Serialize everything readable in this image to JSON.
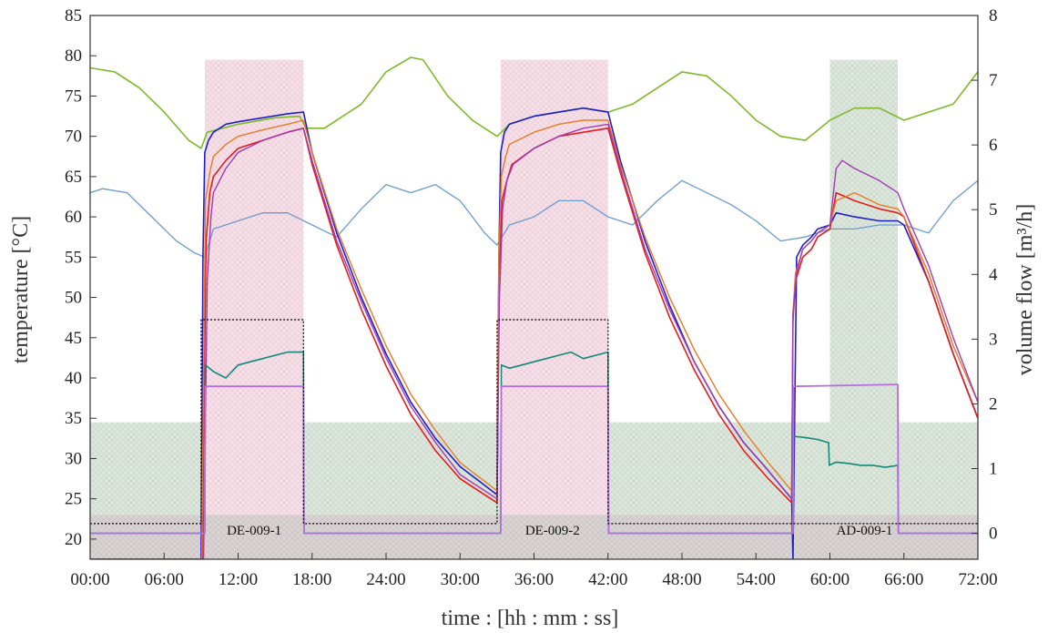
{
  "chart_data": {
    "type": "line",
    "xlabel": "time : [hh : mm : ss]",
    "ylabel_left": "temperature [°C]",
    "ylabel_right": "volume flow [m³/h]",
    "xlim": [
      0,
      72
    ],
    "ylim_left": [
      17.5,
      85
    ],
    "ylim_right": [
      -0.4,
      8
    ],
    "x_ticks": [
      0,
      6,
      12,
      18,
      24,
      30,
      36,
      42,
      48,
      54,
      60,
      66,
      72
    ],
    "x_tick_labels": [
      "00:00",
      "06:00",
      "12:00",
      "18:00",
      "24:00",
      "30:00",
      "36:00",
      "42:00",
      "48:00",
      "54:00",
      "60:00",
      "66:00",
      "72:00"
    ],
    "y_left_ticks": [
      20,
      25,
      30,
      35,
      40,
      45,
      50,
      55,
      60,
      65,
      70,
      75,
      80,
      85
    ],
    "y_right_ticks": [
      0,
      1,
      2,
      3,
      4,
      5,
      6,
      7,
      8
    ],
    "grid": false,
    "shaded_regions": [
      {
        "x": [
          0,
          72
        ],
        "ylim_left": [
          17.5,
          34.5
        ],
        "color": "#dbe6db",
        "hatch": true
      },
      {
        "x": [
          9.3,
          17.3
        ],
        "ylim_left": [
          17.5,
          79.5
        ],
        "color": "#f4dbe4",
        "hatch": true
      },
      {
        "x": [
          33.3,
          42.0
        ],
        "ylim_left": [
          17.5,
          79.5
        ],
        "color": "#f4dbe4",
        "hatch": true
      },
      {
        "x": [
          60.0,
          65.5
        ],
        "ylim_left": [
          17.5,
          79.5
        ],
        "color": "#d8e4d8",
        "hatch": true
      },
      {
        "x": [
          0,
          72
        ],
        "ylim_left": [
          17.5,
          23.0
        ],
        "color": "#d6d0d0",
        "hatch": true
      }
    ],
    "phase_labels": [
      {
        "text": "DE-009-1",
        "x": 13.3
      },
      {
        "text": "DE-009-2",
        "x": 37.5
      },
      {
        "text": "AD-009-1",
        "x": 62.8
      }
    ],
    "series": [
      {
        "axis": "left",
        "color": "#7fb92a",
        "width": 1.6,
        "x": [
          0,
          2,
          4,
          6,
          8,
          9,
          9.5,
          12,
          15,
          17,
          17.5,
          19,
          22,
          24,
          26,
          27,
          29,
          31,
          33,
          34,
          36,
          38,
          40,
          42,
          44,
          46,
          48,
          50,
          52,
          54,
          56,
          58,
          60,
          62,
          64,
          66,
          68,
          70,
          72
        ],
        "y": [
          78.5,
          78,
          76,
          73,
          69.5,
          68.5,
          70.5,
          71.5,
          72.3,
          72.5,
          71,
          71,
          74,
          78,
          79.8,
          79.5,
          75,
          72,
          70,
          71.5,
          72.5,
          73,
          73.5,
          73,
          74,
          76,
          78,
          77.5,
          75,
          72,
          70,
          69.5,
          72,
          73.5,
          73.5,
          72,
          73,
          74,
          78
        ]
      },
      {
        "axis": "left",
        "color": "#6a9bd1",
        "width": 1.3,
        "x": [
          0,
          1,
          3,
          5,
          7,
          8.5,
          9.3,
          10,
          12,
          14,
          16,
          18,
          20,
          22,
          24,
          26,
          28,
          30,
          32,
          33,
          34,
          36,
          38,
          40,
          42,
          44,
          46,
          48,
          50,
          52,
          54,
          56,
          58,
          60,
          62,
          64,
          66,
          68,
          70,
          72
        ],
        "y": [
          63,
          63.5,
          63,
          60,
          57,
          55.5,
          55,
          58.5,
          59.5,
          60.5,
          60.5,
          59,
          57.5,
          61,
          64,
          63,
          64,
          62,
          58,
          56.5,
          59,
          60,
          62,
          62,
          60,
          59,
          62,
          64.5,
          63,
          61.5,
          59.5,
          57,
          57.5,
          58.5,
          58.5,
          59,
          59,
          58,
          62,
          64.5
        ]
      },
      {
        "axis": "left",
        "color": "#1d1ec9",
        "width": 1.6,
        "x": [
          0,
          9.0,
          9.15,
          9.3,
          9.6,
          10,
          11,
          12,
          14,
          16,
          17.3,
          18,
          20,
          22,
          24,
          26,
          28,
          30,
          33.0,
          33.15,
          33.3,
          33.6,
          34,
          36,
          38,
          40,
          42,
          43,
          45,
          47,
          49,
          51,
          53,
          55,
          56.9,
          57.0,
          57.3,
          57.8,
          58.5,
          59,
          60,
          60.5,
          62,
          64,
          65.5,
          66,
          68,
          70,
          72
        ],
        "y": [
          17.5,
          17.5,
          55,
          68,
          69.5,
          70.5,
          71.5,
          71.8,
          72.3,
          72.8,
          73,
          68,
          58,
          50,
          43,
          37,
          32.5,
          29,
          25.5,
          55,
          68,
          70.5,
          71.5,
          72.5,
          73,
          73.5,
          73,
          67,
          57,
          49,
          42,
          36.5,
          32,
          28.5,
          25,
          17.5,
          55,
          56.5,
          57.5,
          58.5,
          59,
          60.5,
          60,
          59.5,
          59.5,
          59,
          52,
          43,
          35
        ]
      },
      {
        "axis": "left",
        "color": "#e61b1b",
        "width": 1.6,
        "x": [
          0,
          9.1,
          9.2,
          9.4,
          9.7,
          10,
          11,
          12,
          14,
          16,
          17.3,
          18,
          20,
          22,
          24,
          26,
          28,
          30,
          33.0,
          33.15,
          33.4,
          33.8,
          34.2,
          36,
          38,
          40,
          42,
          43,
          45,
          47,
          49,
          51,
          53,
          55,
          56.9,
          57.0,
          57.2,
          57.8,
          58.5,
          59,
          60,
          60.5,
          62,
          64,
          65.5,
          66,
          68,
          70,
          72
        ],
        "y": [
          17.5,
          17.5,
          32,
          57,
          63,
          65,
          67,
          68.5,
          69.5,
          70.5,
          71,
          66.5,
          56.5,
          48.5,
          41.5,
          35.5,
          31,
          27.5,
          24.5,
          52,
          62,
          64.5,
          66.5,
          68.5,
          70,
          70.5,
          71,
          65.5,
          55.5,
          47.5,
          41,
          35.5,
          31,
          27.5,
          24.5,
          47,
          52,
          55,
          56,
          57.5,
          58.5,
          63,
          62,
          61,
          60.5,
          60,
          52,
          43,
          35
        ]
      },
      {
        "axis": "left",
        "color": "#e87a24",
        "width": 1.4,
        "x": [
          0,
          9.05,
          9.2,
          9.35,
          9.7,
          10,
          11,
          12,
          14,
          16,
          17.3,
          18,
          20,
          22,
          24,
          26,
          28,
          30,
          33.0,
          33.15,
          33.35,
          33.7,
          34,
          36,
          38,
          40,
          42,
          43,
          45,
          47,
          49,
          51,
          53,
          55,
          56.9,
          57.0,
          57.2,
          57.8,
          58.5,
          59,
          60,
          60.5,
          62,
          64,
          65.5,
          66,
          68,
          70,
          72
        ],
        "y": [
          17.5,
          17.5,
          40,
          62,
          65.5,
          67.5,
          69,
          70,
          70.8,
          71.5,
          72,
          68,
          58.5,
          51,
          44,
          38,
          33.5,
          29.5,
          26,
          55,
          65,
          67.5,
          69,
          70.5,
          71.5,
          72,
          72,
          66.5,
          57.5,
          50,
          43.5,
          38,
          33.5,
          29.5,
          26,
          48,
          53,
          56,
          57,
          58,
          59,
          62,
          63,
          61.5,
          61,
          60,
          53,
          44,
          37
        ]
      },
      {
        "axis": "left",
        "color": "#a23ab5",
        "width": 1.4,
        "x": [
          0,
          9.2,
          9.3,
          9.5,
          9.8,
          10,
          11,
          12,
          14,
          16,
          17.3,
          18,
          20,
          22,
          24,
          26,
          28,
          30,
          33.0,
          33.2,
          33.45,
          33.8,
          34.3,
          36,
          38,
          40,
          42,
          43,
          45,
          47,
          49,
          51,
          53,
          55,
          56.9,
          57.0,
          57.3,
          57.8,
          58.5,
          59,
          60,
          60.5,
          61,
          62,
          64,
          65.5,
          66,
          68,
          70,
          72
        ],
        "y": [
          17.5,
          17.5,
          28,
          52,
          60,
          63,
          66,
          68,
          69.5,
          70.5,
          71,
          67,
          57,
          49.5,
          42.5,
          36.5,
          32,
          28,
          25,
          50,
          61,
          64.5,
          66.5,
          68.5,
          70,
          71,
          71.5,
          66,
          56,
          48.5,
          42,
          36.5,
          32,
          28.5,
          25,
          48,
          53,
          56,
          57,
          58,
          59,
          66,
          67,
          66,
          64.5,
          63,
          61,
          54,
          45,
          37
        ]
      },
      {
        "axis": "right",
        "color": "#11887a",
        "width": 1.6,
        "x": [
          0,
          9.3,
          9.35,
          10,
          11,
          12,
          13,
          14,
          15,
          16,
          17.3,
          17.35,
          33.3,
          33.35,
          34,
          35,
          36,
          37,
          38,
          39,
          40,
          41,
          42,
          42.05,
          57.0,
          57.05,
          58,
          59,
          59.9,
          59.95,
          60.5,
          61.5,
          62.5,
          63.5,
          64.5,
          65.5,
          65.55,
          72
        ],
        "y": [
          0,
          0,
          2.6,
          2.5,
          2.4,
          2.6,
          2.65,
          2.7,
          2.75,
          2.8,
          2.8,
          0,
          0,
          2.6,
          2.55,
          2.6,
          2.65,
          2.7,
          2.75,
          2.8,
          2.7,
          2.75,
          2.8,
          0,
          0,
          1.5,
          1.48,
          1.45,
          1.4,
          1.05,
          1.1,
          1.08,
          1.05,
          1.05,
          1.02,
          1.05,
          0,
          0
        ]
      },
      {
        "axis": "right",
        "color": "#b56ee0",
        "width": 1.8,
        "x": [
          0,
          9.3,
          9.35,
          17.3,
          17.35,
          33.3,
          33.35,
          42.0,
          42.05,
          57.0,
          57.05,
          65.5,
          65.55,
          72
        ],
        "y": [
          0,
          0,
          2.27,
          2.27,
          0,
          0,
          2.27,
          2.27,
          0,
          0,
          2.27,
          2.3,
          0,
          0
        ]
      },
      {
        "axis": "right",
        "color": "#000000",
        "width": 1.2,
        "dash": "2,2",
        "x": [
          0,
          9.0,
          9.0,
          17.3,
          17.3,
          33.0,
          33.0,
          42.0,
          42.0,
          57.0,
          57.0,
          66.0,
          66.0,
          72
        ],
        "y": [
          0.15,
          0.15,
          3.3,
          3.3,
          0.15,
          0.15,
          3.3,
          3.3,
          0.15,
          0.15,
          0.15,
          0.15,
          0.15,
          0.15
        ]
      }
    ]
  }
}
